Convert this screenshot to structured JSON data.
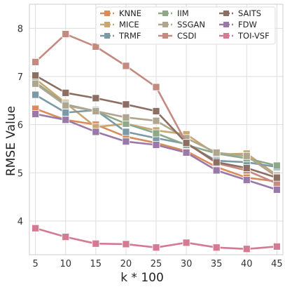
{
  "chart_data": {
    "type": "line",
    "title": "",
    "xlabel": "k * 100",
    "ylabel": "RMSE Value",
    "x": [
      5,
      10,
      15,
      20,
      25,
      30,
      35,
      40,
      45
    ],
    "xticks": [
      "5",
      "10",
      "15",
      "20",
      "25",
      "30",
      "35",
      "40",
      "45"
    ],
    "yticks": [
      "4",
      "5",
      "6",
      "7",
      "8"
    ],
    "ytick_values": [
      4,
      5,
      6,
      7,
      8
    ],
    "xlim": [
      4,
      46
    ],
    "ylim": [
      3.3,
      8.5
    ],
    "grid": true,
    "legend_position": "top-right",
    "legend_columns": 3,
    "series": [
      {
        "name": "KNNE",
        "color": "#d98c5a",
        "dashed": true,
        "values": [
          6.33,
          6.1,
          6.0,
          5.75,
          5.62,
          5.45,
          5.12,
          4.9,
          4.82
        ]
      },
      {
        "name": "MICE",
        "color": "#c8a870",
        "dashed": true,
        "values": [
          6.95,
          6.45,
          5.95,
          6.02,
          5.88,
          5.8,
          5.38,
          5.4,
          4.95
        ]
      },
      {
        "name": "TRMF",
        "color": "#7a9aa8",
        "dashed": true,
        "values": [
          6.62,
          6.25,
          6.3,
          5.85,
          5.72,
          5.6,
          5.25,
          5.22,
          5.12
        ]
      },
      {
        "name": "IIM",
        "color": "#8ea88a",
        "dashed": true,
        "values": [
          6.88,
          6.42,
          6.28,
          6.02,
          5.82,
          5.58,
          5.4,
          5.3,
          5.15
        ]
      },
      {
        "name": "SSGAN",
        "color": "#b0a690",
        "dashed": true,
        "values": [
          6.85,
          6.4,
          6.28,
          6.15,
          6.08,
          5.72,
          5.42,
          5.35,
          4.92
        ]
      },
      {
        "name": "CSDI",
        "color": "#c48a80",
        "dashed": false,
        "values": [
          7.3,
          7.88,
          7.62,
          7.22,
          6.78,
          5.62,
          5.2,
          5.05,
          4.78
        ]
      },
      {
        "name": "SAITS",
        "color": "#8c6e62",
        "dashed": true,
        "values": [
          7.02,
          6.66,
          6.55,
          6.42,
          6.28,
          5.62,
          5.22,
          5.1,
          4.9
        ]
      },
      {
        "name": "FDW",
        "color": "#9a78a8",
        "dashed": true,
        "values": [
          6.22,
          6.1,
          5.85,
          5.65,
          5.58,
          5.42,
          5.05,
          4.85,
          4.65
        ]
      },
      {
        "name": "TOI-VSF",
        "color": "#d47a92",
        "dashed": true,
        "values": [
          3.85,
          3.67,
          3.53,
          3.52,
          3.45,
          3.55,
          3.45,
          3.42,
          3.47
        ]
      }
    ]
  }
}
